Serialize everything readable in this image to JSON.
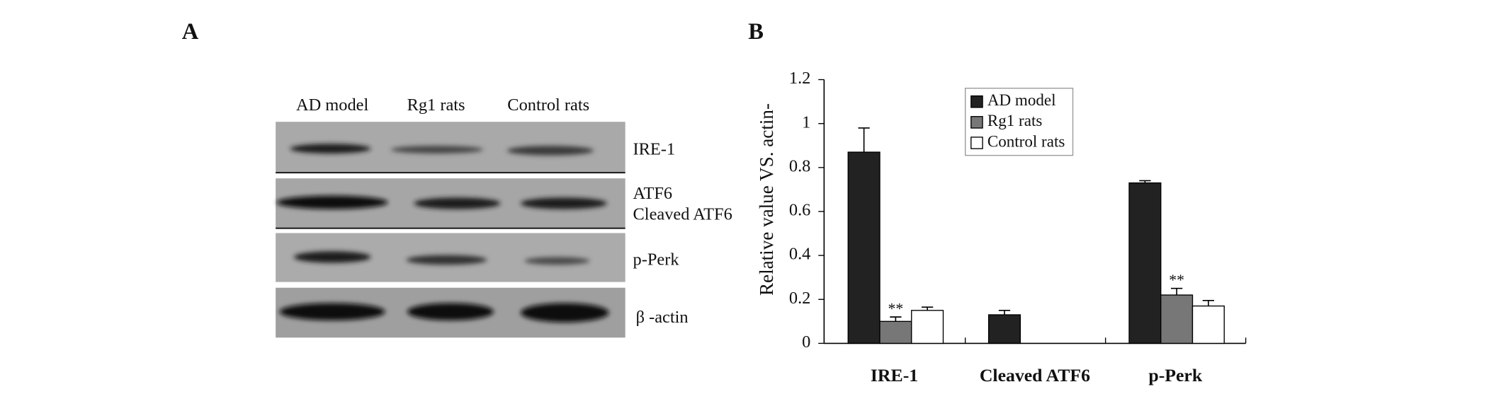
{
  "panel_labels": [
    "A",
    "B"
  ],
  "blot": {
    "lanes": [
      "AD model",
      "Rg1 rats",
      "Control rats"
    ],
    "rows": [
      [
        "IRE-1"
      ],
      [
        "ATF6",
        "Cleaved ATF6"
      ],
      [
        "p-Perk"
      ],
      [
        "β -actin"
      ]
    ]
  },
  "chart_data": {
    "type": "bar",
    "ylabel": "Relative value VS. actin-",
    "categories": [
      "IRE-1",
      "Cleaved ATF6",
      "p-Perk"
    ],
    "series": [
      {
        "name": "AD model",
        "color": "#222222",
        "values": [
          0.87,
          0.13,
          0.73
        ],
        "errors": [
          0.11,
          0.02,
          0.01
        ]
      },
      {
        "name": "Rg1 rats",
        "color": "#777777",
        "values": [
          0.1,
          null,
          0.22
        ],
        "errors": [
          0.02,
          null,
          0.03
        ],
        "significance": [
          "**",
          null,
          "**"
        ]
      },
      {
        "name": "Control rats",
        "color": "#ffffff",
        "values": [
          0.15,
          null,
          0.17
        ],
        "errors": [
          0.015,
          null,
          0.025
        ]
      }
    ],
    "ylim": [
      0,
      1.2
    ],
    "yticks": [
      0,
      0.2,
      0.4,
      0.6,
      0.8,
      1,
      1.2
    ],
    "legend": "upper center"
  }
}
